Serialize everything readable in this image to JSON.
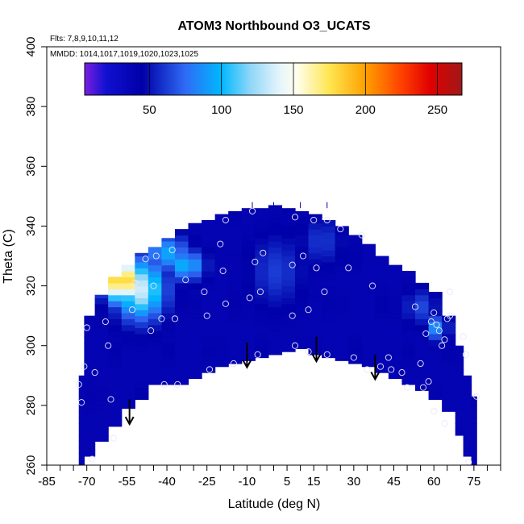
{
  "chart_data": {
    "type": "heatmap",
    "title": "ATOM3 Northbound O3_UCATS",
    "notes": [
      "Flts: 7,8,9,10,11,12",
      "MMDD: 1014,1017,1019,1020,1023,1025"
    ],
    "xlabel": "Latitude (deg N)",
    "ylabel": "Theta (C)",
    "xlim": [
      -85,
      85
    ],
    "ylim": [
      260,
      400
    ],
    "x_ticks": [
      -85,
      -70,
      -55,
      -40,
      -25,
      -10,
      5,
      15,
      30,
      45,
      60,
      75
    ],
    "x_tick_labels": [
      "-85",
      "-70",
      "-55",
      "-40",
      "-25",
      "-10",
      "5",
      "15",
      "30",
      "45",
      "60",
      "75"
    ],
    "y_ticks": [
      260,
      280,
      300,
      320,
      340,
      360,
      380,
      400
    ],
    "y_tick_labels": [
      "260",
      "280",
      "300",
      "320",
      "340",
      "360",
      "380",
      "400"
    ],
    "colorbar": {
      "range": [
        5,
        267
      ],
      "ticks": [
        50,
        100,
        150,
        200,
        250
      ],
      "tick_labels": [
        "50",
        "100",
        "150",
        "200",
        "250"
      ],
      "stops": [
        {
          "value": 5,
          "color": "#7b1fe0"
        },
        {
          "value": 20,
          "color": "#1010d0"
        },
        {
          "value": 45,
          "color": "#0000a8"
        },
        {
          "value": 75,
          "color": "#2f6bf5"
        },
        {
          "value": 100,
          "color": "#00b8ff"
        },
        {
          "value": 120,
          "color": "#8fd6f8"
        },
        {
          "value": 140,
          "color": "#e4f4fb"
        },
        {
          "value": 152,
          "color": "#fffff0"
        },
        {
          "value": 175,
          "color": "#ffe650"
        },
        {
          "value": 200,
          "color": "#ffa000"
        },
        {
          "value": 225,
          "color": "#ff4000"
        },
        {
          "value": 245,
          "color": "#e00000"
        },
        {
          "value": 267,
          "color": "#a01818"
        }
      ]
    },
    "curtain": {
      "lat_edges": [
        -73,
        -71,
        -67,
        -62,
        -57,
        -52,
        -47,
        -42,
        -37,
        -32,
        -27,
        -22,
        -17,
        -12,
        -7,
        -2,
        3,
        8,
        13,
        18,
        23,
        28,
        33,
        38,
        43,
        48,
        53,
        58,
        63,
        68,
        71,
        74,
        76
      ],
      "theta_bottom": [
        260,
        263,
        268,
        273,
        279,
        282,
        287,
        287,
        287,
        289,
        291,
        293,
        294,
        295,
        296,
        297,
        298,
        299,
        297,
        296,
        295,
        294,
        293,
        291,
        289,
        287,
        285,
        282,
        278,
        270,
        263,
        260
      ],
      "theta_top": [
        290,
        310,
        317,
        323,
        327,
        331,
        333,
        336,
        339,
        341,
        342,
        344,
        345,
        346,
        346,
        347,
        346,
        345,
        344,
        342,
        340,
        337,
        334,
        330,
        327,
        325,
        321,
        318,
        310,
        300,
        290,
        283
      ]
    },
    "hotspots": [
      {
        "lat": -57,
        "theta": 322,
        "lat_radius": 6,
        "theta_radius": 7,
        "peak": 205
      },
      {
        "lat": -50,
        "theta": 319,
        "lat_radius": 9,
        "theta_radius": 10,
        "peak": 135
      },
      {
        "lat": -40,
        "theta": 331,
        "lat_radius": 8,
        "theta_radius": 6,
        "peak": 95
      },
      {
        "lat": -33,
        "theta": 327,
        "lat_radius": 7,
        "theta_radius": 5,
        "peak": 100
      },
      {
        "lat": 62,
        "theta": 306,
        "lat_radius": 3,
        "theta_radius": 4,
        "peak": 100
      },
      {
        "lat": 1,
        "theta": 325,
        "lat_radius": 10,
        "theta_radius": 12,
        "peak": 62
      },
      {
        "lat": 18,
        "theta": 335,
        "lat_radius": 8,
        "theta_radius": 8,
        "peak": 60
      },
      {
        "lat": 55,
        "theta": 313,
        "lat_radius": 6,
        "theta_radius": 6,
        "peak": 65
      }
    ],
    "background_o3": 38,
    "sample_points": [
      {
        "lat": -73,
        "theta": 287
      },
      {
        "lat": -72,
        "theta": 281
      },
      {
        "lat": -71,
        "theta": 293
      },
      {
        "lat": -67,
        "theta": 291
      },
      {
        "lat": -68,
        "theta": 262
      },
      {
        "lat": -70,
        "theta": 306
      },
      {
        "lat": -63,
        "theta": 308
      },
      {
        "lat": -62,
        "theta": 300
      },
      {
        "lat": -61,
        "theta": 282
      },
      {
        "lat": -60,
        "theta": 269
      },
      {
        "lat": -53,
        "theta": 312
      },
      {
        "lat": -52,
        "theta": 321
      },
      {
        "lat": -48,
        "theta": 329
      },
      {
        "lat": -46,
        "theta": 305
      },
      {
        "lat": -45,
        "theta": 320
      },
      {
        "lat": -44,
        "theta": 330
      },
      {
        "lat": -42,
        "theta": 309
      },
      {
        "lat": -41,
        "theta": 287
      },
      {
        "lat": -38,
        "theta": 332
      },
      {
        "lat": -37,
        "theta": 309
      },
      {
        "lat": -36,
        "theta": 287
      },
      {
        "lat": -33,
        "theta": 322
      },
      {
        "lat": -26,
        "theta": 318
      },
      {
        "lat": -25,
        "theta": 310
      },
      {
        "lat": -24,
        "theta": 292
      },
      {
        "lat": -20,
        "theta": 334
      },
      {
        "lat": -19,
        "theta": 325
      },
      {
        "lat": -18,
        "theta": 314
      },
      {
        "lat": -18,
        "theta": 342
      },
      {
        "lat": -15,
        "theta": 294
      },
      {
        "lat": -9,
        "theta": 316
      },
      {
        "lat": -8,
        "theta": 345
      },
      {
        "lat": -7,
        "theta": 328
      },
      {
        "lat": -6,
        "theta": 297
      },
      {
        "lat": -5,
        "theta": 318
      },
      {
        "lat": -4,
        "theta": 331
      },
      {
        "lat": 7,
        "theta": 310
      },
      {
        "lat": 7,
        "theta": 327
      },
      {
        "lat": 8,
        "theta": 300
      },
      {
        "lat": 8,
        "theta": 343
      },
      {
        "lat": 11,
        "theta": 330
      },
      {
        "lat": 13,
        "theta": 312
      },
      {
        "lat": 13,
        "theta": 298
      },
      {
        "lat": 15,
        "theta": 342
      },
      {
        "lat": 16,
        "theta": 326
      },
      {
        "lat": 19,
        "theta": 318
      },
      {
        "lat": 20,
        "theta": 297
      },
      {
        "lat": 20,
        "theta": 342
      },
      {
        "lat": 25,
        "theta": 339
      },
      {
        "lat": 28,
        "theta": 326
      },
      {
        "lat": 30,
        "theta": 296
      },
      {
        "lat": 33,
        "theta": 337
      },
      {
        "lat": 35,
        "theta": 292
      },
      {
        "lat": 37,
        "theta": 320
      },
      {
        "lat": 40,
        "theta": 293
      },
      {
        "lat": 43,
        "theta": 296
      },
      {
        "lat": 44,
        "theta": 292
      },
      {
        "lat": 48,
        "theta": 291
      },
      {
        "lat": 50,
        "theta": 286
      },
      {
        "lat": 53,
        "theta": 313
      },
      {
        "lat": 55,
        "theta": 294
      },
      {
        "lat": 56,
        "theta": 286
      },
      {
        "lat": 57,
        "theta": 304
      },
      {
        "lat": 58,
        "theta": 288
      },
      {
        "lat": 59,
        "theta": 308
      },
      {
        "lat": 60,
        "theta": 311
      },
      {
        "lat": 61,
        "theta": 307
      },
      {
        "lat": 62,
        "theta": 305
      },
      {
        "lat": 63,
        "theta": 300
      },
      {
        "lat": 64,
        "theta": 302
      },
      {
        "lat": 65,
        "theta": 309
      },
      {
        "lat": 66,
        "theta": 310
      },
      {
        "lat": 66,
        "theta": 318
      },
      {
        "lat": 60,
        "theta": 278
      },
      {
        "lat": 64,
        "theta": 274
      },
      {
        "lat": 71,
        "theta": 303
      },
      {
        "lat": 72,
        "theta": 297
      },
      {
        "lat": 73,
        "theta": 261
      },
      {
        "lat": 76,
        "theta": 283
      }
    ],
    "arrows": [
      {
        "lat": -54,
        "theta_start": 282,
        "theta_end": 274
      },
      {
        "lat": -10,
        "theta_start": 301,
        "theta_end": 293
      },
      {
        "lat": 16,
        "theta_start": 303,
        "theta_end": 295
      },
      {
        "lat": 38,
        "theta_start": 297,
        "theta_end": 289
      }
    ],
    "top_ticks": [
      -8,
      0,
      10,
      20
    ]
  }
}
